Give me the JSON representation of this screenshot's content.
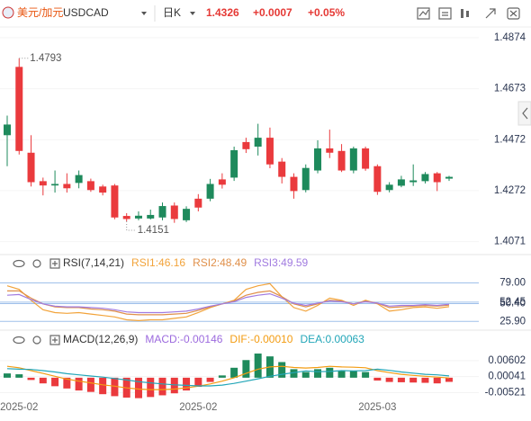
{
  "toolbar": {
    "pair_name": "美元/加元",
    "symbol": "USDCAD",
    "interval": "日K",
    "price": "1.4326",
    "change": "+0.0007",
    "change_percent": "+0.05%"
  },
  "chart_data": [
    {
      "type": "candlestick",
      "categories": [
        null,
        "2025-02",
        null,
        null,
        null,
        null,
        null,
        null,
        null,
        null,
        null,
        null,
        null,
        null,
        null,
        null,
        "2025-02",
        null,
        null,
        null,
        null,
        null,
        null,
        null,
        null,
        null,
        null,
        null,
        null,
        null,
        null,
        "2025-03",
        null,
        null,
        null,
        null,
        null,
        null
      ],
      "open": [
        1.449,
        1.4759,
        1.4421,
        1.4309,
        1.4292,
        1.4298,
        1.4302,
        1.4309,
        1.4288,
        1.4292,
        1.4172,
        1.4162,
        1.4162,
        1.4166,
        1.4213,
        1.4155,
        1.424,
        1.424,
        1.4316,
        1.4323,
        1.4463,
        1.4445,
        1.448,
        1.4386,
        1.4326,
        1.4274,
        1.4351,
        1.4438,
        1.4428,
        1.4351,
        1.4438,
        1.4368,
        1.4274,
        1.4291,
        1.4305,
        1.4309,
        1.434,
        1.4319
      ],
      "high": [
        1.4567,
        1.4793,
        1.449,
        1.4323,
        1.4351,
        1.434,
        1.4351,
        1.4319,
        1.4295,
        1.4298,
        1.4183,
        1.419,
        1.4197,
        1.4225,
        1.4225,
        1.421,
        1.4258,
        1.4318,
        1.434,
        1.4445,
        1.448,
        1.4535,
        1.452,
        1.44,
        1.434,
        1.4375,
        1.447,
        1.4512,
        1.4455,
        1.4445,
        1.4445,
        1.4375,
        1.4305,
        1.433,
        1.4375,
        1.4345,
        1.4345,
        1.433
      ],
      "low": [
        1.4368,
        1.4414,
        1.4288,
        1.4253,
        1.4264,
        1.4264,
        1.4281,
        1.4267,
        1.4253,
        1.4159,
        1.4151,
        1.4155,
        1.4158,
        1.4155,
        1.4145,
        1.4148,
        1.419,
        1.423,
        1.428,
        1.431,
        1.442,
        1.441,
        1.436,
        1.43,
        1.424,
        1.4265,
        1.434,
        1.44,
        1.4345,
        1.434,
        1.435,
        1.4255,
        1.4265,
        1.4285,
        1.429,
        1.43,
        1.427,
        1.431
      ],
      "close": [
        1.4532,
        1.4428,
        1.4305,
        1.4292,
        1.4298,
        1.4281,
        1.4333,
        1.4274,
        1.4264,
        1.4166,
        1.416,
        1.4173,
        1.4176,
        1.4211,
        1.416,
        1.42,
        1.4205,
        1.4298,
        1.4295,
        1.4431,
        1.4435,
        1.448,
        1.4375,
        1.4326,
        1.427,
        1.4361,
        1.4438,
        1.4421,
        1.4351,
        1.4438,
        1.4358,
        1.4267,
        1.4295,
        1.4316,
        1.4312,
        1.4337,
        1.4305,
        1.4326
      ],
      "up_color": "#1e8a5c",
      "down_color": "#ea3a3d",
      "annotations": {
        "max": 1.4793,
        "min": 1.4151
      },
      "ylim": [
        1.4027,
        1.4909
      ],
      "yticks": [
        1.4071,
        1.4272,
        1.4472,
        1.4673,
        1.4874
      ],
      "grid": true
    },
    {
      "type": "line",
      "title": "RSI(7,14,21)",
      "series": [
        {
          "name": "RSI1:46.16",
          "color": "#f2a33a",
          "values": [
            75,
            70,
            55,
            42,
            38,
            37,
            38,
            36,
            34,
            32,
            28,
            27,
            28,
            28,
            30,
            32,
            38,
            45,
            50,
            55,
            70,
            75,
            78,
            60,
            45,
            40,
            48,
            58,
            55,
            48,
            55,
            50,
            40,
            42,
            45,
            46,
            44,
            46.16
          ]
        },
        {
          "name": "RSI2:48.49",
          "color": "#e0904a",
          "values": [
            68,
            68,
            58,
            50,
            46,
            45,
            45,
            43,
            42,
            40,
            36,
            35,
            35,
            35,
            36,
            37,
            41,
            46,
            50,
            54,
            62,
            66,
            68,
            60,
            50,
            46,
            50,
            55,
            54,
            50,
            54,
            51,
            45,
            46,
            47,
            48,
            47,
            48.49
          ]
        },
        {
          "name": "RSI3:49.59",
          "color": "#a17be0",
          "values": [
            62,
            63,
            56,
            50,
            47,
            46,
            46,
            45,
            44,
            42,
            39,
            38,
            38,
            38,
            39,
            40,
            43,
            47,
            50,
            53,
            59,
            62,
            64,
            58,
            51,
            48,
            51,
            54,
            53,
            50,
            53,
            51,
            47,
            48,
            48,
            49,
            48,
            49.59
          ]
        }
      ],
      "ylim": [
        17.5,
        99.5
      ],
      "yticks": [
        {
          "value": 79,
          "label": "79.00"
        },
        52.45,
        {
          "value": 50.4,
          "label": "50.40"
        },
        {
          "value": 25.9,
          "label": "25.90"
        }
      ],
      "grid": true
    },
    {
      "type": "macd",
      "title": "MACD(12,26,9)",
      "series": [
        {
          "name": "MACD:-0.00146",
          "type": "bar",
          "color": "#9c6ade",
          "values": [
            0.0015,
            0.0012,
            -0.0008,
            -0.002,
            -0.003,
            -0.0038,
            -0.0045,
            -0.005,
            -0.0058,
            -0.0065,
            -0.007,
            -0.0072,
            -0.0068,
            -0.0062,
            -0.0055,
            -0.0045,
            -0.0032,
            -0.0015,
            0.0008,
            0.0035,
            0.0062,
            0.0085,
            0.0075,
            0.0055,
            0.003,
            0.002,
            0.003,
            0.0035,
            0.0025,
            0.0025,
            0.002,
            -0.001,
            -0.0015,
            -0.0016,
            -0.0017,
            -0.0018,
            -0.002,
            -0.00146
          ]
        },
        {
          "name": "DIF:-0.00010",
          "color": "#f39c12",
          "values": [
            0.004,
            0.0035,
            0.0025,
            0.0015,
            0.0005,
            -0.0005,
            -0.0012,
            -0.0018,
            -0.0025,
            -0.003,
            -0.0036,
            -0.004,
            -0.0042,
            -0.0042,
            -0.004,
            -0.0036,
            -0.003,
            -0.0022,
            -0.0012,
            0,
            0.0015,
            0.003,
            0.0038,
            0.004,
            0.0036,
            0.0034,
            0.0036,
            0.004,
            0.0038,
            0.0037,
            0.0035,
            0.0025,
            0.0018,
            0.0012,
            0.0008,
            0.0005,
            0.0002,
            -0.0001
          ]
        },
        {
          "name": "DEA:0.00063",
          "color": "#22a6b8",
          "values": [
            0.0032,
            0.003,
            0.0029,
            0.0025,
            0.002,
            0.0014,
            0.001,
            0.0006,
            0.0002,
            -0.0003,
            -0.0008,
            -0.0014,
            -0.0018,
            -0.0022,
            -0.0025,
            -0.0027,
            -0.0029,
            -0.0029,
            -0.0026,
            -0.002,
            -0.0012,
            -0.0004,
            0.0005,
            0.0012,
            0.0018,
            0.0024,
            0.0021,
            0.0022,
            0.0025,
            0.0024,
            0.0025,
            0.003,
            0.0026,
            0.002,
            0.0016,
            0.0012,
            0.001,
            0.00063
          ]
        }
      ],
      "up_color": "#1e8a5c",
      "down_color": "#ea3a3d",
      "ylim": [
        -0.00764,
        0.01452
      ],
      "yticks": [
        0.00602,
        0.00041,
        -0.00521
      ],
      "grid": true
    }
  ]
}
